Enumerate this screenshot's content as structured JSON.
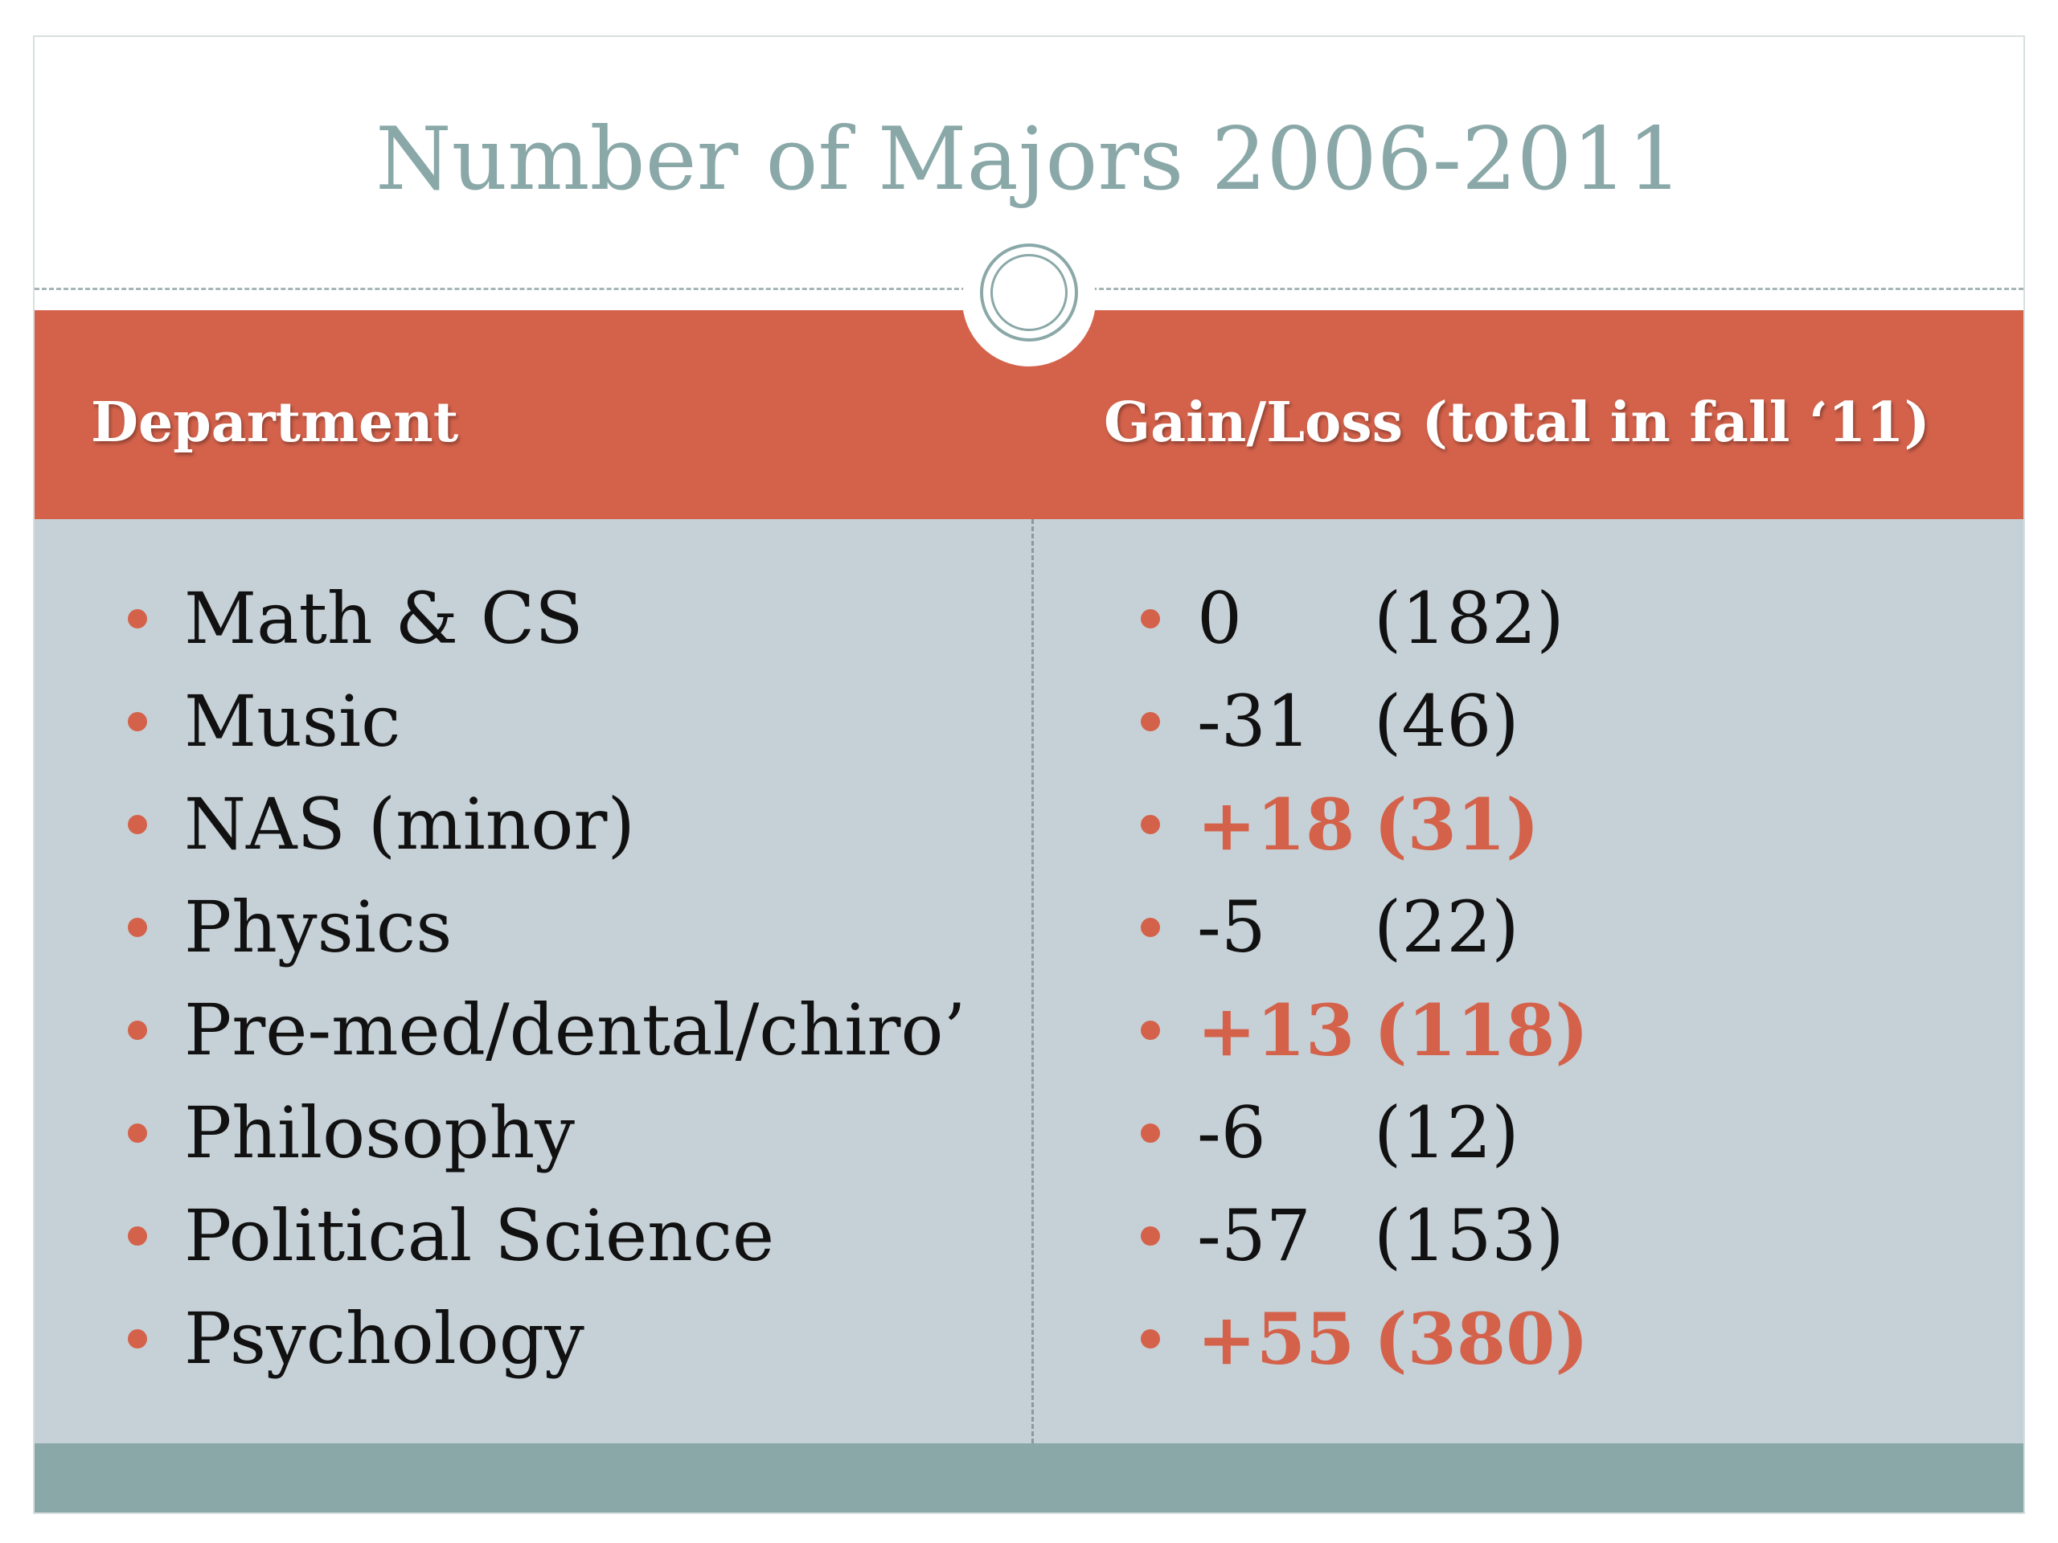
{
  "title": "Number of Majors 2006-2011",
  "headers": {
    "department": "Department",
    "gain_loss": "Gain/Loss (total in fall ‘11)"
  },
  "departments": [
    "Math & CS",
    "Music",
    "NAS (minor)",
    "Physics",
    "Pre-med/dental/chiro’",
    "Philosophy",
    "Political Science",
    "Psychology"
  ],
  "changes": [
    {
      "gain": "0",
      "total": "(182)",
      "highlight": false
    },
    {
      "gain": "-31",
      "total": "(46)",
      "highlight": false
    },
    {
      "gain": "+18",
      "total": "(31)",
      "highlight": true
    },
    {
      "gain": "-5",
      "total": "(22)",
      "highlight": false
    },
    {
      "gain": "+13",
      "total": "(118)",
      "highlight": true
    },
    {
      "gain": "-6",
      "total": "(12)",
      "highlight": false
    },
    {
      "gain": "-57",
      "total": "(153)",
      "highlight": false
    },
    {
      "gain": "+55",
      "total": "(380)",
      "highlight": true
    }
  ],
  "colors": {
    "accent": "#d4624b",
    "title": "#8aa8a8",
    "body_background": "#c6d1d7",
    "footer": "#8aa8a8"
  }
}
